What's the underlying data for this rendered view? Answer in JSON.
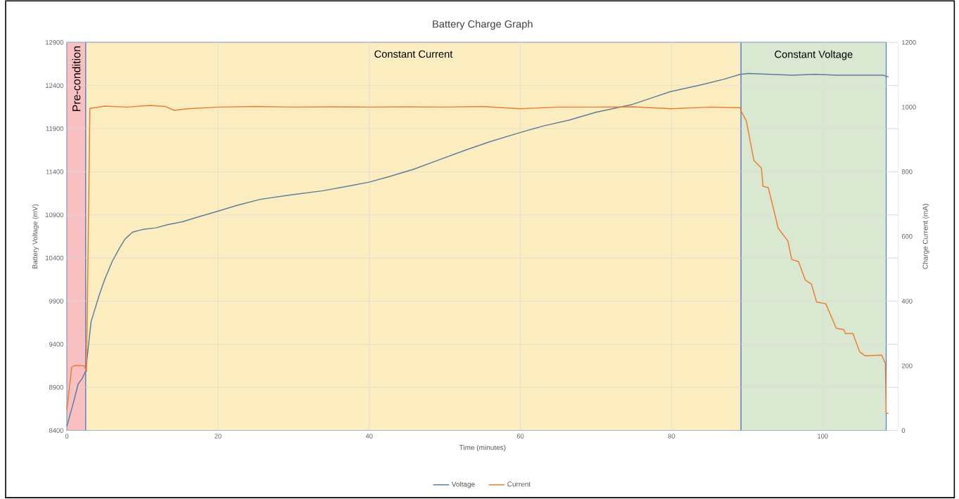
{
  "chart_data": {
    "type": "line",
    "title": "Battery Charge Graph",
    "xlabel": "Time (minutes)",
    "ylabel": "Battery Voltage (mV)",
    "y2label": "Charge Current (mA)",
    "xlim": [
      0,
      110
    ],
    "xticks": [
      0,
      20,
      40,
      60,
      80,
      100
    ],
    "ylim": [
      8400,
      12900
    ],
    "yticks": [
      8400,
      8900,
      9400,
      9900,
      10400,
      10900,
      11400,
      11900,
      12400,
      12900
    ],
    "y2lim": [
      0,
      1200
    ],
    "y2ticks": [
      0,
      200,
      400,
      600,
      800,
      1000,
      1200
    ],
    "grid": true,
    "legend": "bottom",
    "line_style": "solid",
    "marker": "none",
    "bands": [
      {
        "axis": "x",
        "from": 0,
        "to": 2.5,
        "label": "Pre-condition",
        "color": "#f8c0c0"
      },
      {
        "axis": "x",
        "from": 2.5,
        "to": 89.2,
        "label": "Constant Current",
        "color": "#fcedc0"
      },
      {
        "axis": "x",
        "from": 89.2,
        "to": 108.4,
        "label": "Constant Voltage",
        "color": "#dae8d2"
      }
    ],
    "series": [
      {
        "name": "Voltage",
        "color": "#5f7d9c",
        "x": [
          0,
          0.8,
          1.5,
          2.0,
          2.5,
          3.2,
          4.25,
          5.0,
          6.0,
          7.0,
          7.7,
          8.7,
          10.0,
          11.8,
          13.5,
          15.3,
          17.5,
          19.9,
          22.5,
          25.6,
          29.5,
          33.9,
          37.0,
          40,
          42.5,
          45.9,
          49.0,
          52.7,
          56.0,
          59.8,
          63.0,
          66.5,
          70.0,
          74.8,
          77.5,
          79.9,
          83.5,
          86.8,
          89.1,
          90.2,
          93.0,
          96.0,
          99.0,
          102.0,
          105.0,
          108.0,
          108.7
        ],
        "values": [
          8450,
          8700,
          8940,
          9000,
          9090,
          9660,
          9960,
          10150,
          10360,
          10520,
          10620,
          10700,
          10730,
          10750,
          10790,
          10820,
          10880,
          10940,
          11010,
          11080,
          11130,
          11180,
          11230,
          11280,
          11340,
          11430,
          11530,
          11650,
          11750,
          11850,
          11930,
          12000,
          12090,
          12180,
          12260,
          12330,
          12400,
          12470,
          12530,
          12540,
          12530,
          12520,
          12530,
          12520,
          12520,
          12520,
          12500
        ]
      },
      {
        "name": "Current",
        "color": "#ed7d31",
        "axis": "y2",
        "x": [
          0,
          0.64,
          1.1,
          2.3,
          2.6,
          3.05,
          5.0,
          8.0,
          11.0,
          13.0,
          14.2,
          16.0,
          20.0,
          25.0,
          30.0,
          35.0,
          40.0,
          45.0,
          50.0,
          55.0,
          60.0,
          65.0,
          70.0,
          75.0,
          80.0,
          85.0,
          89.1,
          89.2,
          89.9,
          90.9,
          91.9,
          92.1,
          92.8,
          93.7,
          94.1,
          95.4,
          95.9,
          96.8,
          97.7,
          98.5,
          99.2,
          100.4,
          101.8,
          102.8,
          103.0,
          104.0,
          104.9,
          105.6,
          107.8,
          108.3,
          108.4,
          108.7
        ],
        "values": [
          63,
          196,
          201,
          200,
          183,
          996,
          1003,
          1000,
          1005,
          1002,
          990,
          995,
          1000,
          1002,
          1000,
          1001,
          1000,
          1001,
          1000,
          1002,
          995,
          1000,
          1000,
          1001,
          995,
          1000,
          998,
          988,
          957,
          835,
          811,
          755,
          751,
          666,
          626,
          586,
          529,
          522,
          465,
          453,
          397,
          392,
          316,
          312,
          300,
          300,
          243,
          231,
          233,
          207,
          54,
          52
        ]
      }
    ]
  }
}
